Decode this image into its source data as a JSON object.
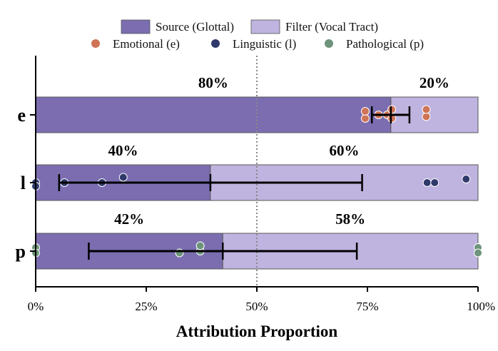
{
  "chart_data": {
    "type": "bar",
    "orientation": "horizontal",
    "stacked": true,
    "xlabel": "Attribution Proportion",
    "xlim": [
      0,
      100
    ],
    "xticks": [
      0,
      25,
      50,
      75,
      100
    ],
    "xtick_labels": [
      "0%",
      "25%",
      "50%",
      "75%",
      "100%"
    ],
    "reference_line": 50,
    "categories": [
      "e",
      "l",
      "p"
    ],
    "series": [
      {
        "name": "Source (Glottal)",
        "color": "#7b6db0",
        "values": [
          80.3,
          39.5,
          42.3
        ]
      },
      {
        "name": "Filter (Vocal Tract)",
        "color": "#bfb3df",
        "values": [
          19.7,
          60.5,
          57.7
        ]
      }
    ],
    "value_labels": [
      {
        "source": "80%",
        "filter": "20%"
      },
      {
        "source": "40%",
        "filter": "60%"
      },
      {
        "source": "42%",
        "filter": "58%"
      }
    ],
    "error_bars": [
      {
        "center": 80.3,
        "low": 76.0,
        "high": 84.5
      },
      {
        "center": 39.5,
        "low": 5.3,
        "high": 73.8
      },
      {
        "center": 42.3,
        "low": 12.0,
        "high": 72.6
      }
    ],
    "points": [
      {
        "name": "Emotional (e)",
        "color": "#cf7457",
        "category": "e",
        "values": [
          74.5,
          74.5,
          77.5,
          79.5,
          80.5,
          80.5,
          88.3,
          88.3
        ],
        "offsets": [
          0.1,
          -0.1,
          0.0,
          0.0,
          0.1,
          -0.15,
          0.05,
          -0.15
        ]
      },
      {
        "name": "Linguistic (l)",
        "color": "#2f3a6b",
        "category": "l",
        "values": [
          0.0,
          0.0,
          6.5,
          15.0,
          19.8,
          88.5,
          90.2,
          97.3
        ],
        "offsets": [
          0.0,
          0.1,
          0.0,
          0.0,
          -0.15,
          0.0,
          0.0,
          -0.1
        ]
      },
      {
        "name": "Pathological (p)",
        "color": "#6d947a",
        "category": "p",
        "values": [
          0.0,
          0.0,
          32.5,
          37.2,
          37.2,
          100.0,
          100.0
        ],
        "offsets": [
          -0.1,
          0.05,
          0.05,
          0.0,
          -0.15,
          -0.1,
          0.05
        ]
      }
    ],
    "legend": {
      "placement": "top-center",
      "bar_entries": [
        "Source (Glottal)",
        "Filter (Vocal Tract)"
      ],
      "point_entries": [
        "Emotional (e)",
        "Linguistic (l)",
        "Pathological (p)"
      ]
    },
    "grid": false
  }
}
